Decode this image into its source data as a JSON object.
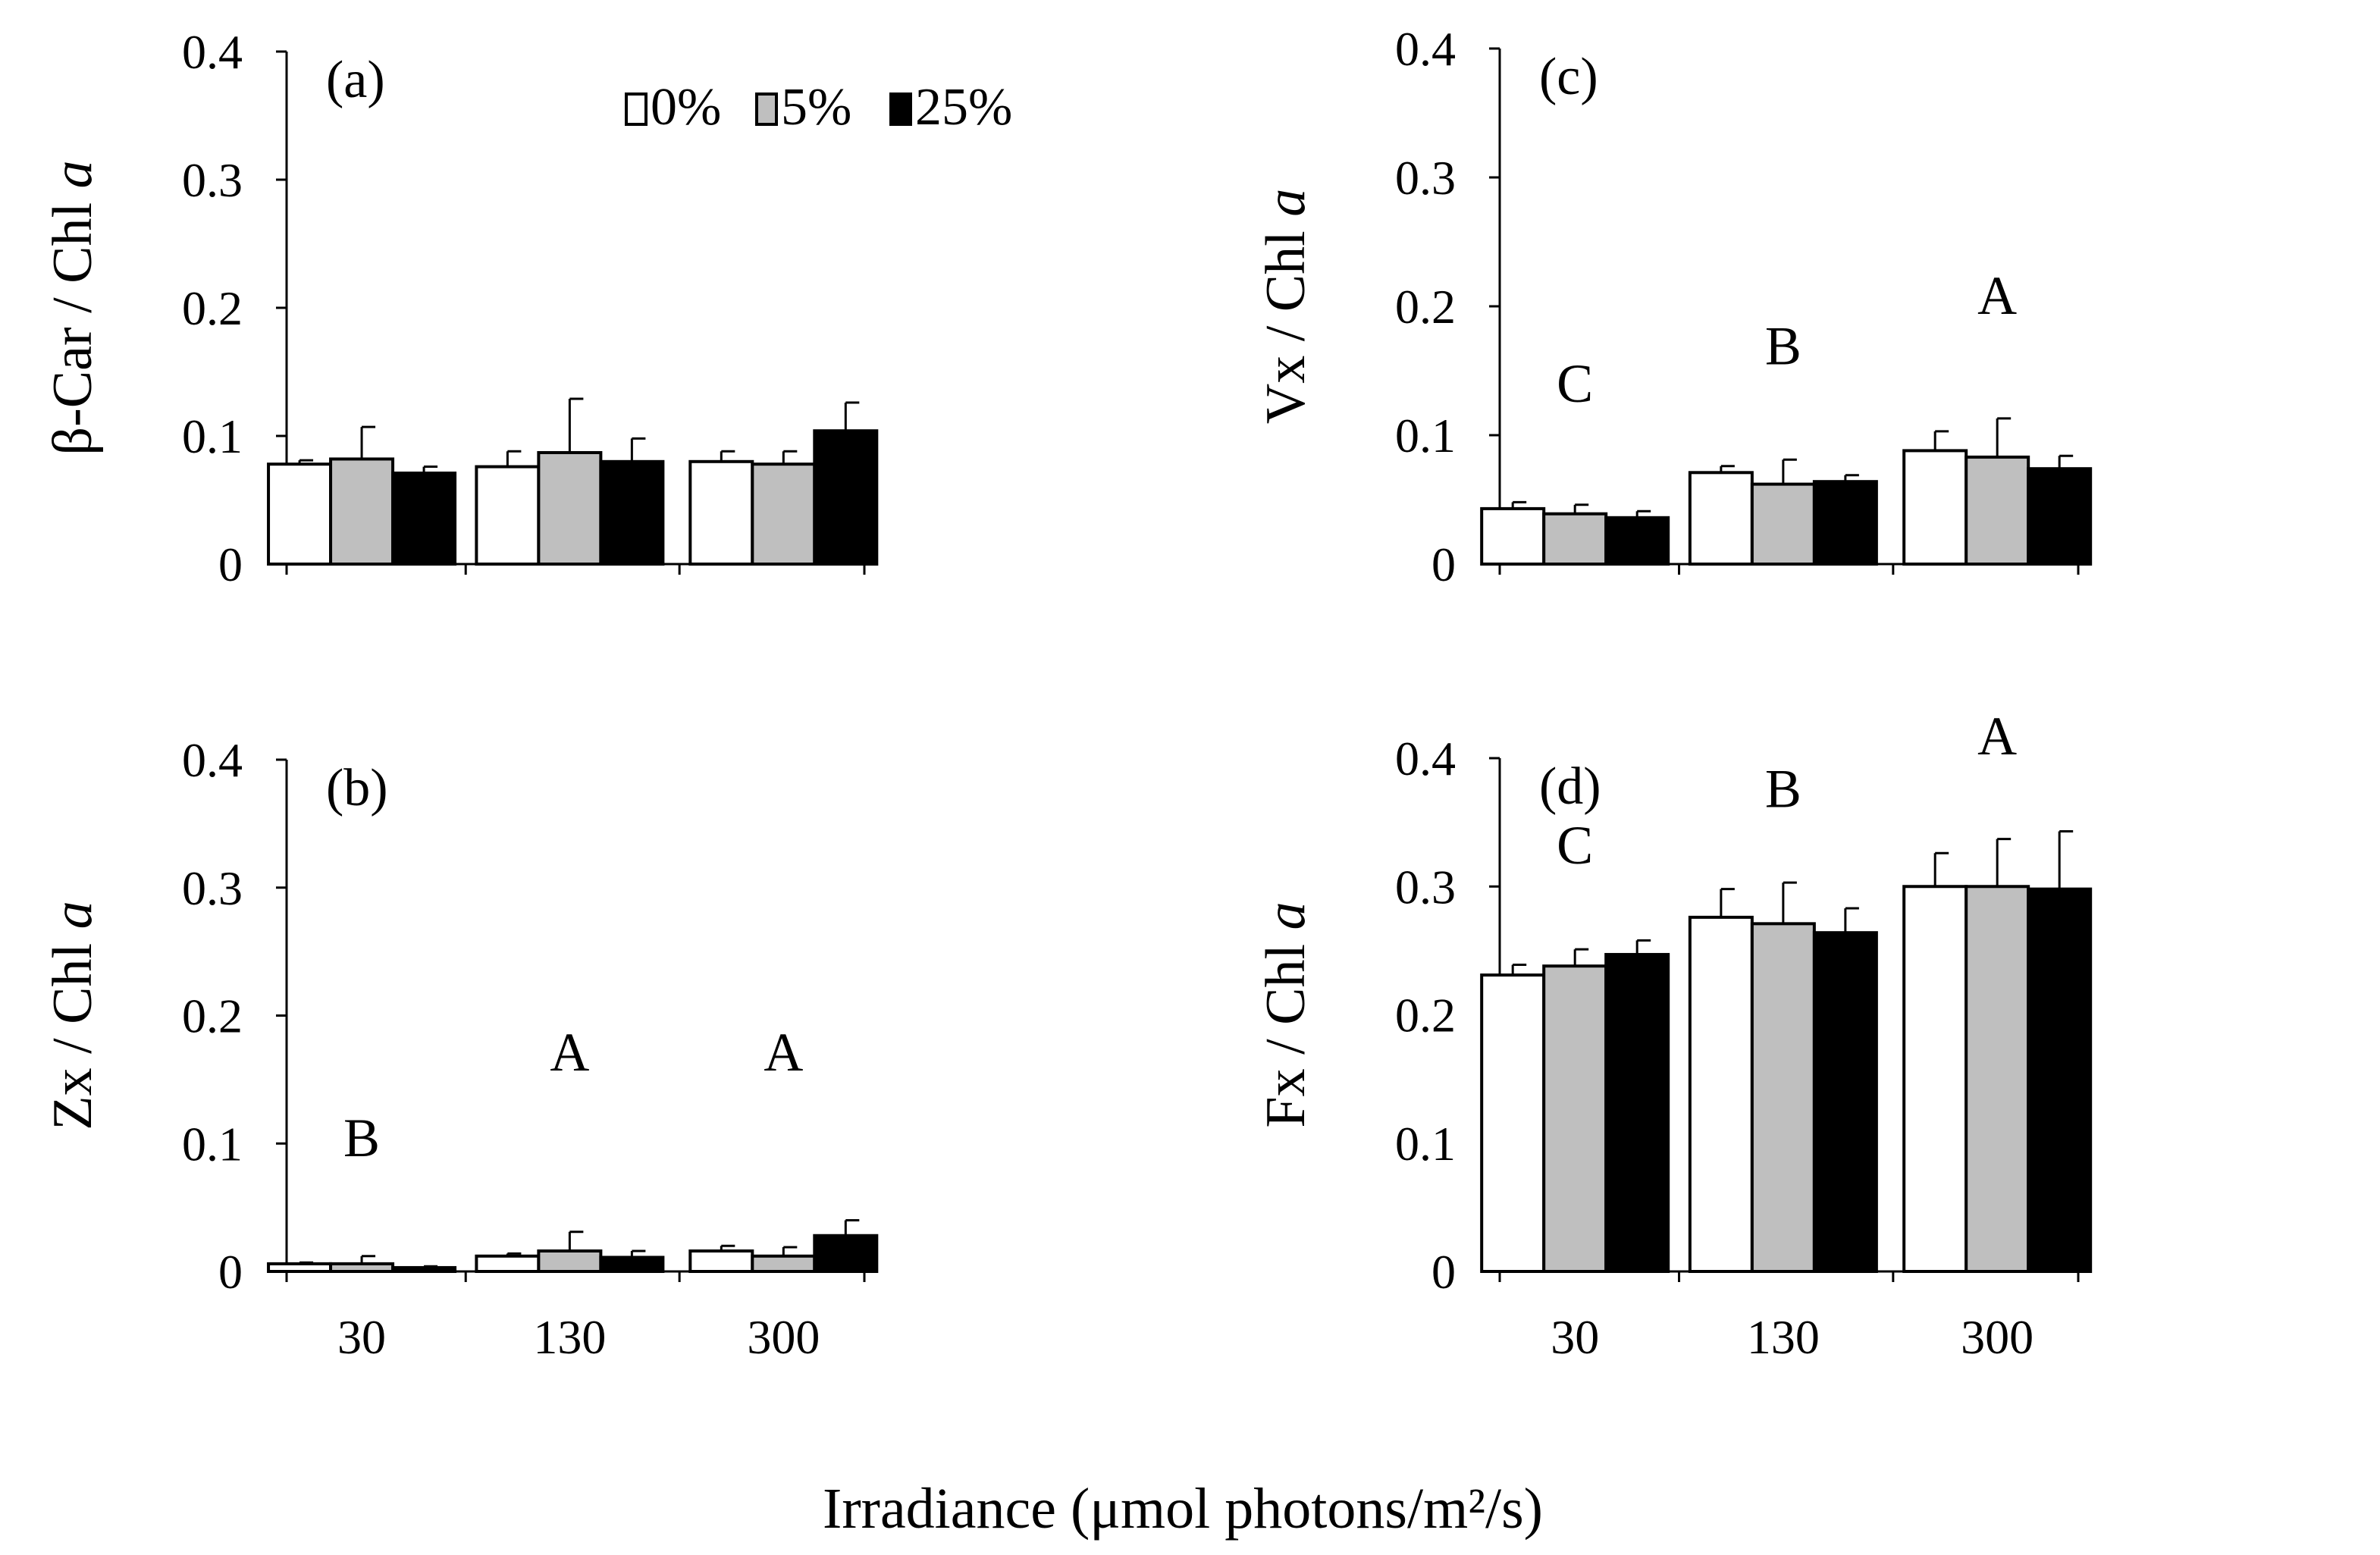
{
  "chart_data": [
    {
      "type": "bar",
      "panel": "(a)",
      "ylabel": "β-Car / Chl a",
      "ylim": [
        0,
        0.4
      ],
      "yticks": [
        0,
        0.1,
        0.2,
        0.3,
        0.4
      ],
      "ytick_labels": [
        "0",
        "0.1",
        "0.2",
        "0.3",
        "0.4"
      ],
      "categories": [
        "30",
        "130",
        "300"
      ],
      "series": [
        {
          "name": "0%",
          "values": [
            0.078,
            0.076,
            0.08
          ],
          "errors": [
            0.003,
            0.012,
            0.008
          ]
        },
        {
          "name": "5%",
          "values": [
            0.082,
            0.087,
            0.078
          ],
          "errors": [
            0.025,
            0.042,
            0.01
          ]
        },
        {
          "name": "25%",
          "values": [
            0.071,
            0.08,
            0.104
          ],
          "errors": [
            0.005,
            0.018,
            0.022
          ]
        }
      ],
      "group_letters": [],
      "show_xticklabels": false,
      "legend": {
        "entries": [
          "0%",
          "5%",
          "25%"
        ],
        "placement": "top-right"
      }
    },
    {
      "type": "bar",
      "panel": "(b)",
      "ylabel": "Zx / Chl a",
      "ylim": [
        0,
        0.4
      ],
      "yticks": [
        0,
        0.1,
        0.2,
        0.3,
        0.4
      ],
      "ytick_labels": [
        "0",
        "0.1",
        "0.2",
        "0.3",
        "0.4"
      ],
      "categories": [
        "30",
        "130",
        "300"
      ],
      "series": [
        {
          "name": "0%",
          "values": [
            0.006,
            0.012,
            0.016
          ],
          "errors": [
            0.001,
            0.002,
            0.004
          ]
        },
        {
          "name": "5%",
          "values": [
            0.006,
            0.016,
            0.012
          ],
          "errors": [
            0.006,
            0.015,
            0.007
          ]
        },
        {
          "name": "25%",
          "values": [
            0.003,
            0.011,
            0.028
          ],
          "errors": [
            0.001,
            0.005,
            0.012
          ]
        }
      ],
      "group_letters": [
        "B",
        "A",
        "A"
      ],
      "group_letter_heights": [
        0.09,
        0.157,
        0.157
      ],
      "show_xticklabels": true
    },
    {
      "type": "bar",
      "panel": "(c)",
      "ylabel": "Vx / Chl a",
      "ylim": [
        0,
        0.4
      ],
      "yticks": [
        0,
        0.1,
        0.2,
        0.3,
        0.4
      ],
      "ytick_labels": [
        "0",
        "0.1",
        "0.2",
        "0.3",
        "0.4"
      ],
      "categories": [
        "30",
        "130",
        "300"
      ],
      "series": [
        {
          "name": "0%",
          "values": [
            0.043,
            0.071,
            0.088
          ],
          "errors": [
            0.005,
            0.005,
            0.015
          ]
        },
        {
          "name": "5%",
          "values": [
            0.039,
            0.062,
            0.083
          ],
          "errors": [
            0.007,
            0.019,
            0.03
          ]
        },
        {
          "name": "25%",
          "values": [
            0.036,
            0.064,
            0.074
          ],
          "errors": [
            0.005,
            0.005,
            0.01
          ]
        }
      ],
      "group_letters": [
        "C",
        "B",
        "A"
      ],
      "group_letter_heights": [
        0.126,
        0.155,
        0.194
      ],
      "show_xticklabels": false
    },
    {
      "type": "bar",
      "panel": "(d)",
      "ylabel": "Fx / Chl a",
      "ylim": [
        0,
        0.4
      ],
      "yticks": [
        0,
        0.1,
        0.2,
        0.3,
        0.4
      ],
      "ytick_labels": [
        "0",
        "0.1",
        "0.2",
        "0.3",
        "0.4"
      ],
      "categories": [
        "30",
        "130",
        "300"
      ],
      "series": [
        {
          "name": "0%",
          "values": [
            0.231,
            0.276,
            0.3
          ],
          "errors": [
            0.008,
            0.022,
            0.026
          ]
        },
        {
          "name": "5%",
          "values": [
            0.238,
            0.271,
            0.3
          ],
          "errors": [
            0.013,
            0.032,
            0.037
          ]
        },
        {
          "name": "25%",
          "values": [
            0.247,
            0.264,
            0.298
          ],
          "errors": [
            0.011,
            0.019,
            0.045
          ]
        }
      ],
      "group_letters": [
        "C",
        "B",
        "A"
      ],
      "group_letter_heights": [
        0.318,
        0.362,
        0.403
      ],
      "show_xticklabels": true
    }
  ],
  "xlabel": "Irradiance (μmol photons/m²/s)",
  "colors": {
    "0%": "#ffffff",
    "5%": "#bfbfbf",
    "25%": "#000000",
    "axis": "#000000"
  }
}
